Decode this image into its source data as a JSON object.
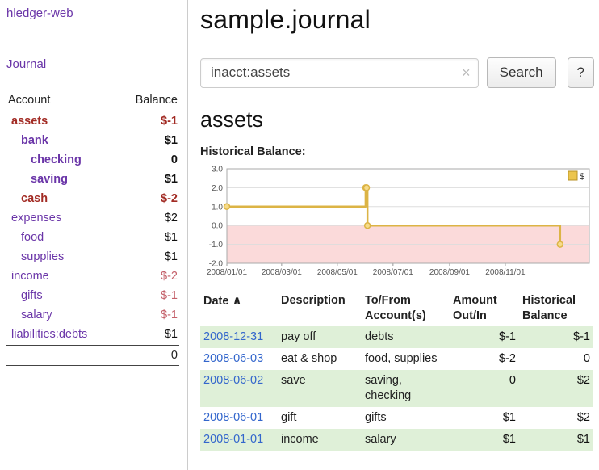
{
  "app": {
    "title": "hledger-web",
    "nav_journal": "Journal"
  },
  "colors": {
    "link_purple": "#6a35a8",
    "negative_red": "#a22b24",
    "soft_negative": "#c4606a",
    "table_negative": "#b30000",
    "date_blue": "#3366cc",
    "row_stripe_green": "#dff0d8",
    "chart_line_gold": "#dcb445",
    "chart_negative_region": "#fbdada"
  },
  "sidebar": {
    "header": {
      "account": "Account",
      "balance": "Balance"
    },
    "accounts": [
      {
        "name": "assets",
        "balance": "$-1"
      },
      {
        "name": "bank",
        "balance": "$1"
      },
      {
        "name": "checking",
        "balance": "0"
      },
      {
        "name": "saving",
        "balance": "$1"
      },
      {
        "name": "cash",
        "balance": "$-2"
      },
      {
        "name": "expenses",
        "balance": "$2"
      },
      {
        "name": "food",
        "balance": "$1"
      },
      {
        "name": "supplies",
        "balance": "$1"
      },
      {
        "name": "income",
        "balance": "$-2"
      },
      {
        "name": "gifts",
        "balance": "$-1"
      },
      {
        "name": "salary",
        "balance": "$-1"
      },
      {
        "name": "liabilities:debts",
        "balance": "$1"
      }
    ],
    "total": "0"
  },
  "main": {
    "title": "sample.journal",
    "search": {
      "value": "inacct:assets",
      "clear_icon": "×",
      "button": "Search",
      "help_button": "?"
    },
    "account_heading": "assets",
    "chart_label": "Historical Balance:"
  },
  "chart_data": {
    "type": "line",
    "step": true,
    "title": "Historical Balance",
    "series": [
      {
        "name": "$",
        "color": "#dcb445",
        "x": [
          "2008-01-01",
          "2008-06-01",
          "2008-06-02",
          "2008-06-03",
          "2008-12-31"
        ],
        "values": [
          1,
          2,
          2,
          0,
          -1
        ]
      }
    ],
    "ylim": [
      -2,
      3
    ],
    "yticks": [
      3.0,
      2.0,
      1.0,
      0.0,
      -1.0,
      -2.0
    ],
    "xtick_labels": [
      "2008/01/01",
      "2008/03/01",
      "2008/05/01",
      "2008/07/01",
      "2008/09/01",
      "2008/11/01"
    ],
    "negative_region_color": "#fbdada",
    "legend": {
      "label": "$",
      "position": "top-right"
    }
  },
  "table": {
    "headers": {
      "date": "Date",
      "sort_icon": "∧",
      "description": "Description",
      "account_line1": "To/From",
      "account_line2": "Account(s)",
      "amount_line1": "Amount",
      "amount_line2": "Out/In",
      "balance_line1": "Historical",
      "balance_line2": "Balance"
    },
    "rows": [
      {
        "date": "2008-12-31",
        "description": "pay off",
        "accounts": "debts",
        "amount": "$-1",
        "balance": "$-1"
      },
      {
        "date": "2008-06-03",
        "description": "eat & shop",
        "accounts": "food, supplies",
        "amount": "$-2",
        "balance": "0"
      },
      {
        "date": "2008-06-02",
        "description": "save",
        "accounts": "saving, checking",
        "amount": "0",
        "balance": "$2"
      },
      {
        "date": "2008-06-01",
        "description": "gift",
        "accounts": "gifts",
        "amount": "$1",
        "balance": "$2"
      },
      {
        "date": "2008-01-01",
        "description": "income",
        "accounts": "salary",
        "amount": "$1",
        "balance": "$1"
      }
    ]
  }
}
